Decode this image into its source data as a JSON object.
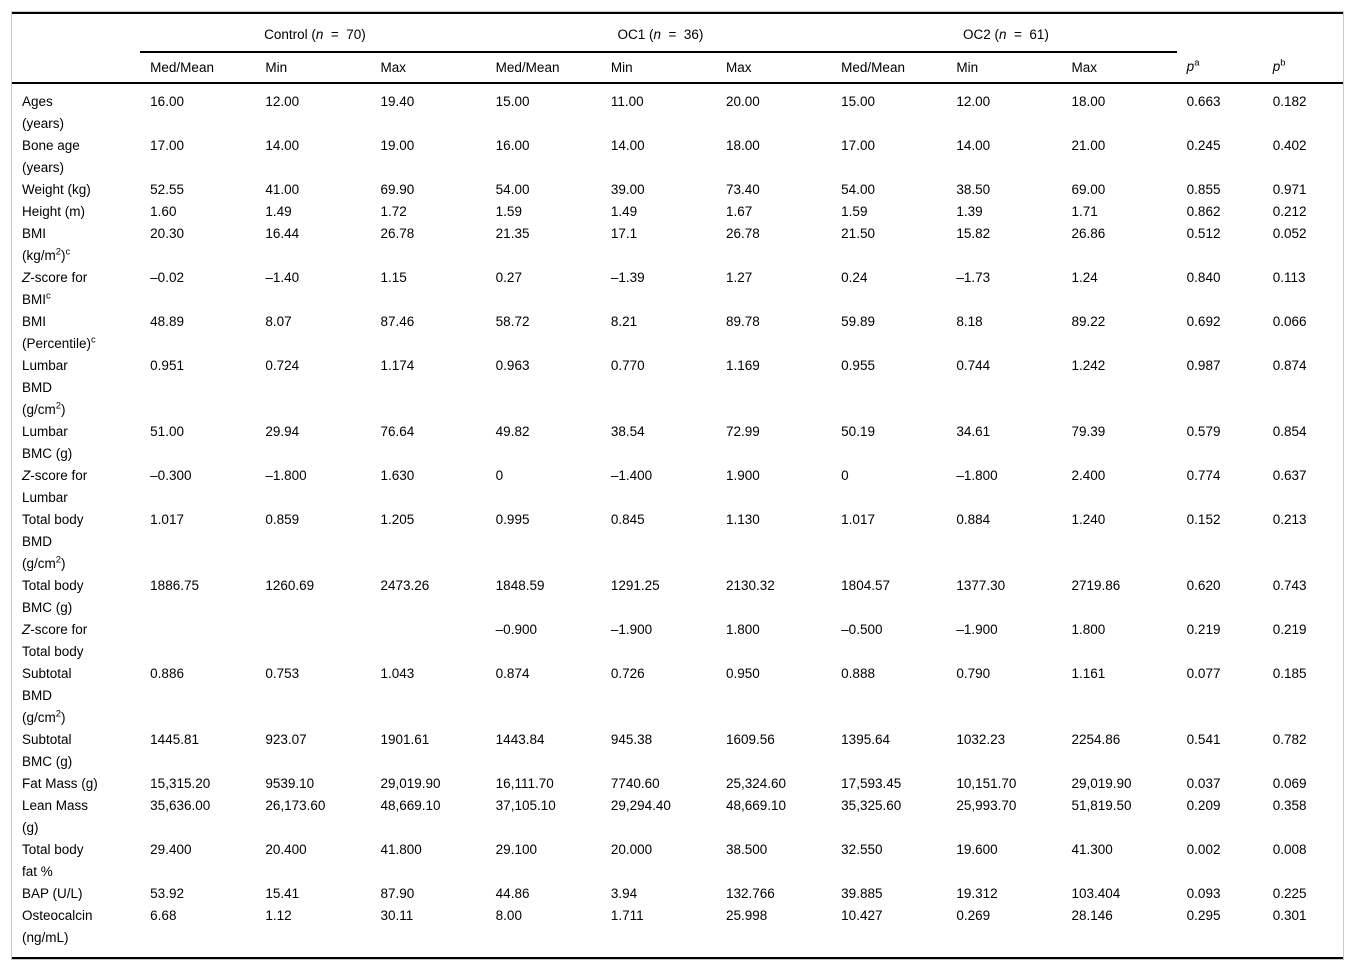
{
  "table": {
    "header": {
      "groups": [
        {
          "segments": [
            {
              "t": "Control ("
            },
            {
              "t": "n",
              "i": true
            },
            {
              "t": "  =  70)"
            }
          ]
        },
        {
          "segments": [
            {
              "t": "OC1 ("
            },
            {
              "t": "n",
              "i": true
            },
            {
              "t": "  =  36)"
            }
          ]
        },
        {
          "segments": [
            {
              "t": "OC2 ("
            },
            {
              "t": "n",
              "i": true
            },
            {
              "t": "  =  61)"
            }
          ]
        }
      ],
      "subcols": [
        "Med/Mean",
        "Min",
        "Max"
      ],
      "p_headers": [
        [
          {
            "t": "p",
            "i": true
          },
          {
            "t": "a",
            "sup": true
          }
        ],
        [
          {
            "t": "p",
            "i": true
          },
          {
            "t": "b",
            "sup": true
          }
        ]
      ]
    },
    "rows": [
      {
        "label": [
          [
            {
              "t": "Ages"
            }
          ],
          [
            {
              "t": "(years)"
            }
          ]
        ],
        "values": [
          "16.00",
          "12.00",
          "19.40",
          "15.00",
          "11.00",
          "20.00",
          "15.00",
          "12.00",
          "18.00",
          "0.663",
          "0.182"
        ]
      },
      {
        "label": [
          [
            {
              "t": "Bone age"
            }
          ],
          [
            {
              "t": "(years)"
            }
          ]
        ],
        "values": [
          "17.00",
          "14.00",
          "19.00",
          "16.00",
          "14.00",
          "18.00",
          "17.00",
          "14.00",
          "21.00",
          "0.245",
          "0.402"
        ]
      },
      {
        "label": [
          [
            {
              "t": "Weight (kg)"
            }
          ]
        ],
        "values": [
          "52.55",
          "41.00",
          "69.90",
          "54.00",
          "39.00",
          "73.40",
          "54.00",
          "38.50",
          "69.00",
          "0.855",
          "0.971"
        ]
      },
      {
        "label": [
          [
            {
              "t": "Height (m)"
            }
          ]
        ],
        "values": [
          "1.60",
          "1.49",
          "1.72",
          "1.59",
          "1.49",
          "1.67",
          "1.59",
          "1.39",
          "1.71",
          "0.862",
          "0.212"
        ]
      },
      {
        "label": [
          [
            {
              "t": "BMI"
            }
          ],
          [
            {
              "t": "(kg/m"
            },
            {
              "t": "2",
              "sup": true
            },
            {
              "t": ")"
            },
            {
              "t": "c",
              "sup": true
            }
          ]
        ],
        "values": [
          "20.30",
          "16.44",
          "26.78",
          "21.35",
          "17.1",
          "26.78",
          "21.50",
          "15.82",
          "26.86",
          "0.512",
          "0.052"
        ]
      },
      {
        "label": [
          [
            {
              "t": "Z",
              "i": true
            },
            {
              "t": "-score for"
            }
          ],
          [
            {
              "t": "BMI"
            },
            {
              "t": "c",
              "sup": true
            }
          ]
        ],
        "values": [
          "–0.02",
          "–1.40",
          "1.15",
          "0.27",
          "–1.39",
          "1.27",
          "0.24",
          "–1.73",
          "1.24",
          "0.840",
          "0.113"
        ]
      },
      {
        "label": [
          [
            {
              "t": "BMI"
            }
          ],
          [
            {
              "t": "(Percentile)"
            },
            {
              "t": "c",
              "sup": true
            }
          ]
        ],
        "values": [
          "48.89",
          "8.07",
          "87.46",
          "58.72",
          "8.21",
          "89.78",
          "59.89",
          "8.18",
          "89.22",
          "0.692",
          "0.066"
        ]
      },
      {
        "label": [
          [
            {
              "t": "Lumbar"
            }
          ],
          [
            {
              "t": "BMD"
            }
          ],
          [
            {
              "t": "(g/cm"
            },
            {
              "t": "2",
              "sup": true
            },
            {
              "t": ")"
            }
          ]
        ],
        "values": [
          "0.951",
          "0.724",
          "1.174",
          "0.963",
          "0.770",
          "1.169",
          "0.955",
          "0.744",
          "1.242",
          "0.987",
          "0.874"
        ]
      },
      {
        "label": [
          [
            {
              "t": "Lumbar"
            }
          ],
          [
            {
              "t": "BMC (g)"
            }
          ]
        ],
        "values": [
          "51.00",
          "29.94",
          "76.64",
          "49.82",
          "38.54",
          "72.99",
          "50.19",
          "34.61",
          "79.39",
          "0.579",
          "0.854"
        ]
      },
      {
        "label": [
          [
            {
              "t": "Z",
              "i": true
            },
            {
              "t": "-score for"
            }
          ],
          [
            {
              "t": "Lumbar"
            }
          ]
        ],
        "values": [
          "–0.300",
          "–1.800",
          "1.630",
          "0",
          "–1.400",
          "1.900",
          "0",
          "–1.800",
          "2.400",
          "0.774",
          "0.637"
        ]
      },
      {
        "label": [
          [
            {
              "t": "Total body"
            }
          ],
          [
            {
              "t": "BMD"
            }
          ],
          [
            {
              "t": "(g/cm"
            },
            {
              "t": "2",
              "sup": true
            },
            {
              "t": ")"
            }
          ]
        ],
        "values": [
          "1.017",
          "0.859",
          "1.205",
          "0.995",
          "0.845",
          "1.130",
          "1.017",
          "0.884",
          "1.240",
          "0.152",
          "0.213"
        ]
      },
      {
        "label": [
          [
            {
              "t": "Total body"
            }
          ],
          [
            {
              "t": "BMC (g)"
            }
          ]
        ],
        "values": [
          "1886.75",
          "1260.69",
          "2473.26",
          "1848.59",
          "1291.25",
          "2130.32",
          "1804.57",
          "1377.30",
          "2719.86",
          "0.620",
          "0.743"
        ]
      },
      {
        "label": [
          [
            {
              "t": "Z",
              "i": true
            },
            {
              "t": "-score for"
            }
          ],
          [
            {
              "t": "Total body"
            }
          ]
        ],
        "values": [
          "",
          "",
          "",
          "–0.900",
          "–1.900",
          "1.800",
          "–0.500",
          "–1.900",
          "1.800",
          "0.219",
          "0.219"
        ]
      },
      {
        "label": [
          [
            {
              "t": "Subtotal"
            }
          ],
          [
            {
              "t": "BMD"
            }
          ],
          [
            {
              "t": "(g/cm"
            },
            {
              "t": "2",
              "sup": true
            },
            {
              "t": ")"
            }
          ]
        ],
        "values": [
          "0.886",
          "0.753",
          "1.043",
          "0.874",
          "0.726",
          "0.950",
          "0.888",
          "0.790",
          "1.161",
          "0.077",
          "0.185"
        ]
      },
      {
        "label": [
          [
            {
              "t": "Subtotal"
            }
          ],
          [
            {
              "t": "BMC (g)"
            }
          ]
        ],
        "values": [
          "1445.81",
          "923.07",
          "1901.61",
          "1443.84",
          "945.38",
          "1609.56",
          "1395.64",
          "1032.23",
          "2254.86",
          "0.541",
          "0.782"
        ]
      },
      {
        "label": [
          [
            {
              "t": "Fat Mass (g)"
            }
          ]
        ],
        "values": [
          "15,315.20",
          "9539.10",
          "29,019.90",
          "16,111.70",
          "7740.60",
          "25,324.60",
          "17,593.45",
          "10,151.70",
          "29,019.90",
          "0.037",
          "0.069"
        ]
      },
      {
        "label": [
          [
            {
              "t": "Lean Mass"
            }
          ],
          [
            {
              "t": "(g)"
            }
          ]
        ],
        "values": [
          "35,636.00",
          "26,173.60",
          "48,669.10",
          "37,105.10",
          "29,294.40",
          "48,669.10",
          "35,325.60",
          "25,993.70",
          "51,819.50",
          "0.209",
          "0.358"
        ]
      },
      {
        "label": [
          [
            {
              "t": "Total body"
            }
          ],
          [
            {
              "t": "fat %"
            }
          ]
        ],
        "values": [
          "29.400",
          "20.400",
          "41.800",
          "29.100",
          "20.000",
          "38.500",
          "32.550",
          "19.600",
          "41.300",
          "0.002",
          "0.008"
        ]
      },
      {
        "label": [
          [
            {
              "t": "BAP (U/L)"
            }
          ]
        ],
        "values": [
          "53.92",
          "15.41",
          "87.90",
          "44.86",
          "3.94",
          "132.766",
          "39.885",
          "19.312",
          "103.404",
          "0.093",
          "0.225"
        ]
      },
      {
        "label": [
          [
            {
              "t": "Osteocalcin"
            }
          ],
          [
            {
              "t": "(ng/mL)"
            }
          ]
        ],
        "values": [
          "6.68",
          "1.12",
          "30.11",
          "8.00",
          "1.711",
          "25.998",
          "10.427",
          "0.269",
          "28.146",
          "0.295",
          "0.301"
        ]
      }
    ]
  }
}
